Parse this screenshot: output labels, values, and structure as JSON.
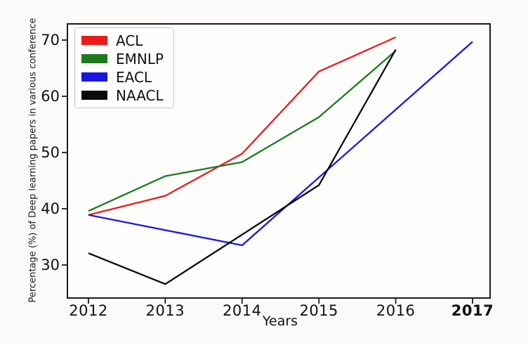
{
  "figure": {
    "title": "",
    "ylabel": "Percentage (%) of Deep learning papers in various conference",
    "xlabel": "Years"
  },
  "chart_data": {
    "type": "line",
    "title": "",
    "xlabel": "Years",
    "ylabel": "Percentage (%) of Deep learning papers in various conference",
    "xticks": [
      2012,
      2013,
      2014,
      2015,
      2016,
      2017
    ],
    "yticks": [
      30,
      40,
      50,
      60,
      70
    ],
    "xlim": [
      2011.73,
      2017.23
    ],
    "ylim": [
      24.1,
      72.9
    ],
    "grid": false,
    "legend_position": "upper left",
    "emphasized_xtick": "2017",
    "series": [
      {
        "name": "ACL",
        "color": "#e81c1c",
        "points": [
          [
            2012,
            38.9
          ],
          [
            2013,
            42.3
          ],
          [
            2014,
            49.8
          ],
          [
            2015,
            64.4
          ],
          [
            2016,
            70.5
          ]
        ]
      },
      {
        "name": "EMNLP",
        "color": "#1d7a1d",
        "points": [
          [
            2012,
            39.6
          ],
          [
            2013,
            45.8
          ],
          [
            2014,
            48.3
          ],
          [
            2015,
            56.3
          ],
          [
            2016,
            68.1
          ]
        ]
      },
      {
        "name": "EACL",
        "color": "#1717e0",
        "points": [
          [
            2012,
            38.9
          ],
          [
            2014,
            33.5
          ],
          [
            2017,
            69.7
          ]
        ]
      },
      {
        "name": "NAACL",
        "color": "#0a0a0a",
        "points": [
          [
            2012,
            32.1
          ],
          [
            2013,
            26.6
          ],
          [
            2015,
            44.2
          ],
          [
            2016,
            68.3
          ]
        ]
      }
    ]
  }
}
